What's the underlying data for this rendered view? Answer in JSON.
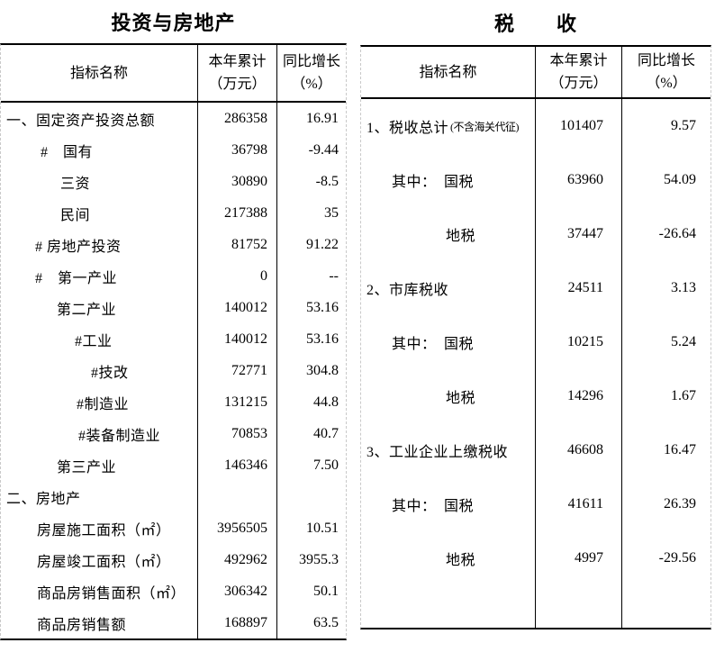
{
  "left_table": {
    "title": "投资与房地产",
    "headers": {
      "name": "指标名称",
      "value_line1": "本年累计",
      "value_line2": "（万元）",
      "growth_line1": "同比增长",
      "growth_line2": "（%）"
    },
    "rows": [
      {
        "name": "一、固定资产投资总额",
        "indent": 6,
        "value": "286358",
        "growth": "16.91"
      },
      {
        "name": "#　国有",
        "indent": 44,
        "value": "36798",
        "growth": "-9.44"
      },
      {
        "name": "三资",
        "indent": 66,
        "value": "30890",
        "growth": "-8.5"
      },
      {
        "name": "民间",
        "indent": 66,
        "value": "217388",
        "growth": "35"
      },
      {
        "name": "# 房地产投资",
        "indent": 38,
        "value": "81752",
        "growth": "91.22"
      },
      {
        "name": "#　第一产业",
        "indent": 38,
        "value": "0",
        "growth": "--"
      },
      {
        "name": "第二产业",
        "indent": 62,
        "value": "140012",
        "growth": "53.16"
      },
      {
        "name": "#工业",
        "indent": 82,
        "value": "140012",
        "growth": "53.16"
      },
      {
        "name": "#技改",
        "indent": 100,
        "value": "72771",
        "growth": "304.8"
      },
      {
        "name": "#制造业",
        "indent": 84,
        "value": "131215",
        "growth": "44.8"
      },
      {
        "name": "#装备制造业",
        "indent": 86,
        "value": "70853",
        "growth": "40.7"
      },
      {
        "name": "第三产业",
        "indent": 62,
        "value": "146346",
        "growth": "7.50"
      },
      {
        "name": "二、房地产",
        "indent": 6,
        "value": "",
        "growth": ""
      },
      {
        "name": "房屋施工面积（㎡）",
        "indent": 40,
        "value": "3956505",
        "growth": "10.51"
      },
      {
        "name": "房屋竣工面积（㎡）",
        "indent": 40,
        "value": "492962",
        "growth": "3955.3"
      },
      {
        "name": "商品房销售面积（㎡）",
        "indent": 40,
        "value": "306342",
        "growth": "50.1"
      },
      {
        "name": "商品房销售额",
        "indent": 40,
        "value": "168897",
        "growth": "63.5"
      }
    ]
  },
  "right_table": {
    "title": "税　　收",
    "headers": {
      "name": "指标名称",
      "value_line1": "本年累计",
      "value_line2": "（万元）",
      "growth_line1": "同比增长",
      "growth_line2": "（%）"
    },
    "rows": [
      {
        "name": "1、税收总计",
        "note": "(不含海关代征)",
        "indent": 6,
        "value": "101407",
        "growth": "9.57"
      },
      {
        "name": "其中：　国税",
        "indent": 34,
        "value": "63960",
        "growth": "54.09"
      },
      {
        "name": "地税",
        "indent": 94,
        "value": "37447",
        "growth": "-26.64"
      },
      {
        "name": "2、市库税收",
        "indent": 6,
        "value": "24511",
        "growth": "3.13"
      },
      {
        "name": "其中：　国税",
        "indent": 34,
        "value": "10215",
        "growth": "5.24"
      },
      {
        "name": "地税",
        "indent": 94,
        "value": "14296",
        "growth": "1.67"
      },
      {
        "name": "3、工业企业上缴税收",
        "indent": 6,
        "value": "46608",
        "growth": "16.47"
      },
      {
        "name": "其中：　国税",
        "indent": 34,
        "value": "41611",
        "growth": "26.39"
      },
      {
        "name": "地税",
        "indent": 94,
        "value": "4997",
        "growth": "-29.56"
      }
    ]
  },
  "colors": {
    "text": "#000000",
    "solid_border": "#000000",
    "dashed_border": "#c9c9c9",
    "background": "#ffffff"
  }
}
